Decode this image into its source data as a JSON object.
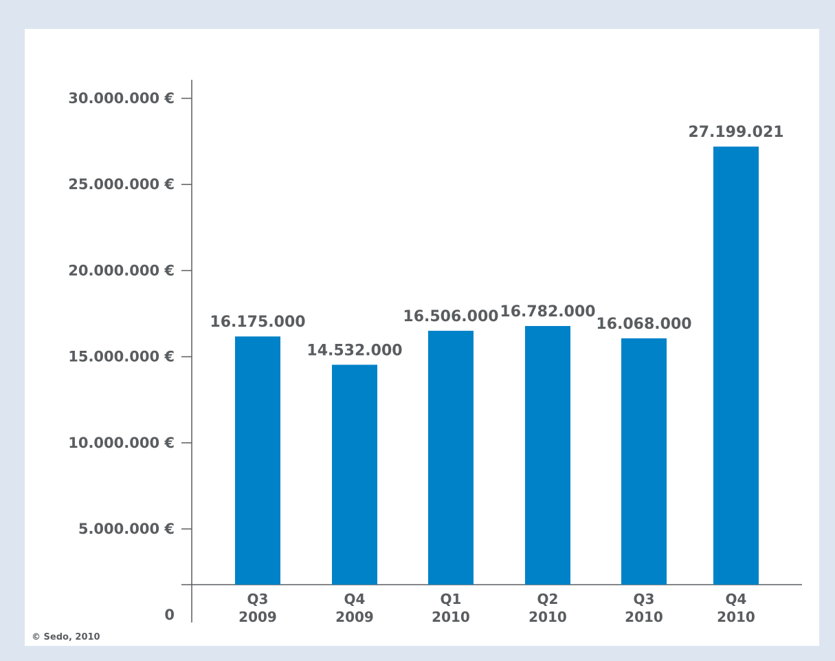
{
  "chart_data": {
    "type": "bar",
    "title": "",
    "xlabel": "",
    "ylabel": "",
    "ylim": [
      0,
      30000000
    ],
    "y_ticks": [
      0,
      5000000,
      10000000,
      15000000,
      20000000,
      25000000,
      30000000
    ],
    "y_tick_labels": [
      "0",
      "5.000.000 €",
      "10.000.000 €",
      "15.000.000 €",
      "20.000.000 €",
      "25.000.000 €",
      "30.000.000 €"
    ],
    "categories": [
      {
        "quarter": "Q3",
        "year": "2009"
      },
      {
        "quarter": "Q4",
        "year": "2009"
      },
      {
        "quarter": "Q1",
        "year": "2010"
      },
      {
        "quarter": "Q2",
        "year": "2010"
      },
      {
        "quarter": "Q3",
        "year": "2010"
      },
      {
        "quarter": "Q4",
        "year": "2010"
      }
    ],
    "values": [
      16175000,
      14532000,
      16506000,
      16782000,
      16068000,
      27199021
    ],
    "value_labels": [
      "16.175.000",
      "14.532.000",
      "16.506.000",
      "16.782.000",
      "16.068.000",
      "27.199.021"
    ],
    "bar_color": "#0082c8",
    "axis_color": "#5a5d60",
    "text_color": "#5a5d60",
    "grid": false,
    "legend": "none"
  },
  "copyright": "© Sedo, 2010",
  "colors": {
    "background": "#dde6f0",
    "panel": "#ffffff"
  }
}
